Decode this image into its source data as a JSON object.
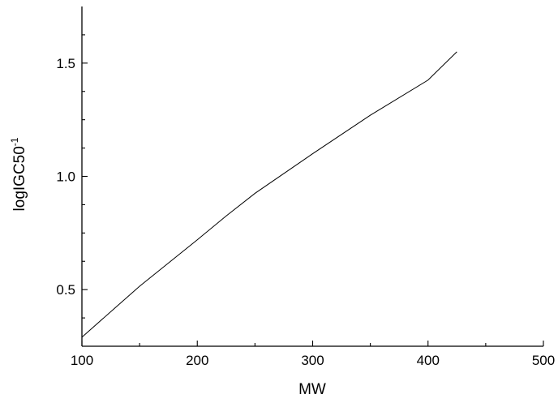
{
  "chart_data": {
    "type": "line",
    "title": "",
    "xlabel": "MW",
    "ylabel": {
      "base": "logIGC50",
      "superscript": "-1"
    },
    "xlim": [
      100,
      500
    ],
    "ylim": [
      0.25,
      1.75
    ],
    "x_ticks": [
      100,
      200,
      300,
      400,
      500
    ],
    "x_tick_labels": [
      "100",
      "200",
      "300",
      "400",
      "500"
    ],
    "x_minor_step": 50,
    "y_ticks": [
      0.5,
      1.0,
      1.5
    ],
    "y_tick_labels": [
      "0.5",
      "1.0",
      "1.5"
    ],
    "y_minor_step": 0.125,
    "grid": false,
    "series": [
      {
        "x": [
          100,
          150,
          200,
          225,
          250,
          300,
          350,
          400,
          425
        ],
        "y": [
          0.29,
          0.515,
          0.72,
          0.825,
          0.925,
          1.1,
          1.27,
          1.425,
          1.55
        ]
      }
    ],
    "colors": {
      "line": "#000000",
      "axis": "#000000"
    }
  }
}
